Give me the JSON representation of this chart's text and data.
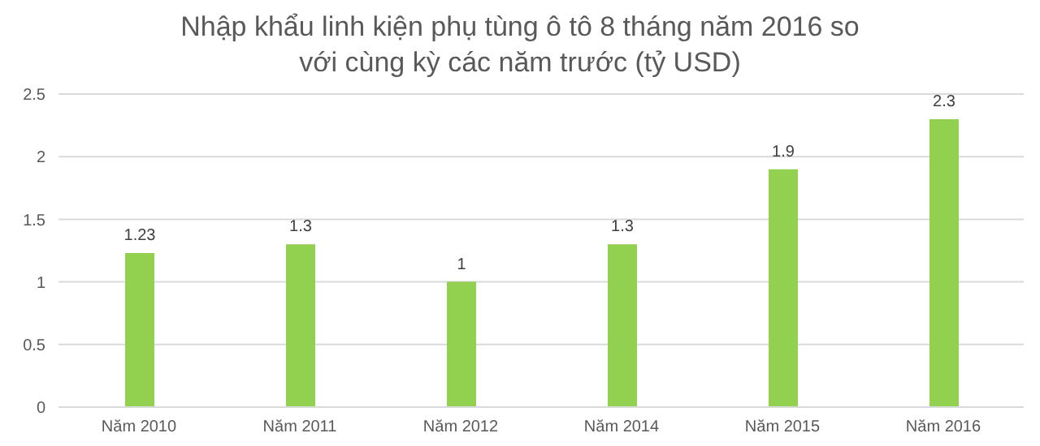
{
  "chart_data": {
    "type": "bar",
    "title": "Nhập khẩu linh kiện phụ tùng ô tô 8 tháng năm 2016 so với cùng kỳ các năm trước (tỷ USD)",
    "categories": [
      "Năm 2010",
      "Năm 2011",
      "Năm 2012",
      "Năm 2014",
      "Năm 2015",
      "Năm 2016"
    ],
    "values": [
      1.23,
      1.3,
      1,
      1.3,
      1.9,
      2.3
    ],
    "color": "#92d050",
    "ylim": [
      0,
      2.5
    ],
    "yticks": [
      0,
      0.5,
      1,
      1.5,
      2,
      2.5
    ],
    "grid": "y",
    "data_labels": true
  }
}
